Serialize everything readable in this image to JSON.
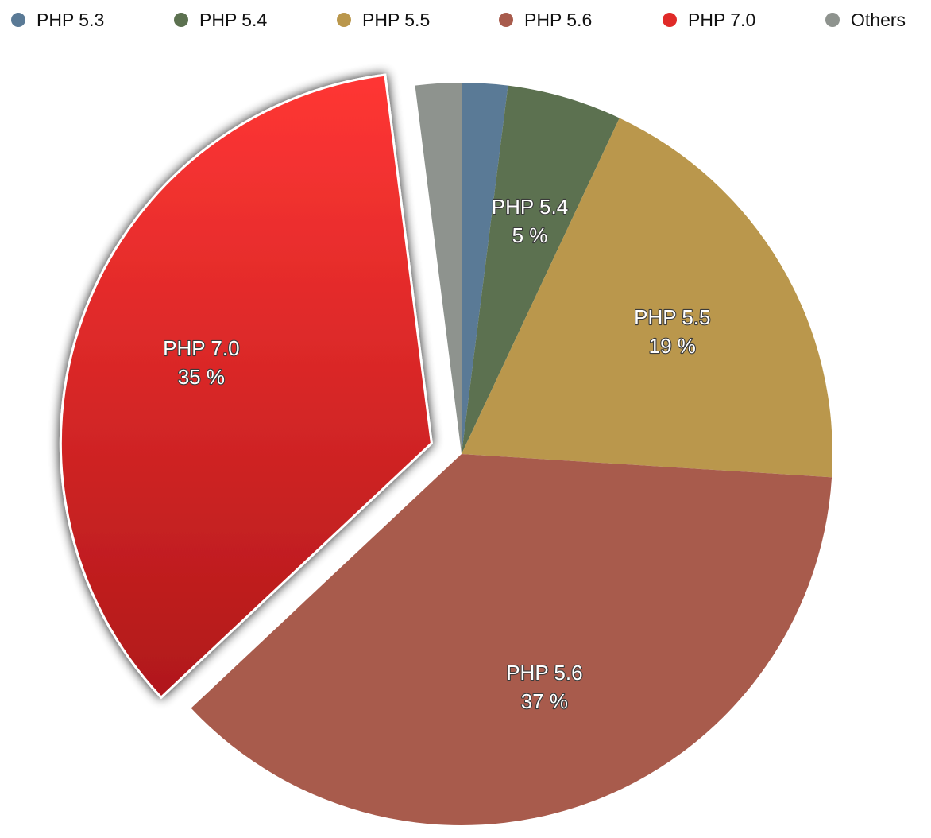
{
  "chart_data": {
    "type": "pie",
    "title": "",
    "legend_position": "top",
    "start_angle_deg": 0,
    "direction": "clockwise",
    "exploded": "PHP 7.0",
    "slices": [
      {
        "name": "PHP 5.3",
        "value": 2,
        "color": "#5a7a96",
        "label": "",
        "pct_label": ""
      },
      {
        "name": "PHP 5.4",
        "value": 5,
        "color": "#5c7150",
        "label": "PHP 5.4",
        "pct_label": "5 %"
      },
      {
        "name": "PHP 5.5",
        "value": 19,
        "color": "#ba974c",
        "label": "PHP 5.5",
        "pct_label": "19 %"
      },
      {
        "name": "PHP 5.6",
        "value": 37,
        "color": "#a85b4c",
        "label": "PHP 5.6",
        "pct_label": "37 %"
      },
      {
        "name": "PHP 7.0",
        "value": 35,
        "color": "#e02a28",
        "label": "PHP 7.0",
        "pct_label": "35 %"
      },
      {
        "name": "Others",
        "value": 2,
        "color": "#8e938e",
        "label": "",
        "pct_label": ""
      }
    ]
  },
  "legend": {
    "items": [
      {
        "label": "PHP 5.3",
        "color": "#5a7a96"
      },
      {
        "label": "PHP 5.4",
        "color": "#5c7150"
      },
      {
        "label": "PHP 5.5",
        "color": "#ba974c"
      },
      {
        "label": "PHP 5.6",
        "color": "#a85b4c"
      },
      {
        "label": "PHP 7.0",
        "color": "#e02a28"
      },
      {
        "label": "Others",
        "color": "#8e938e"
      }
    ]
  }
}
